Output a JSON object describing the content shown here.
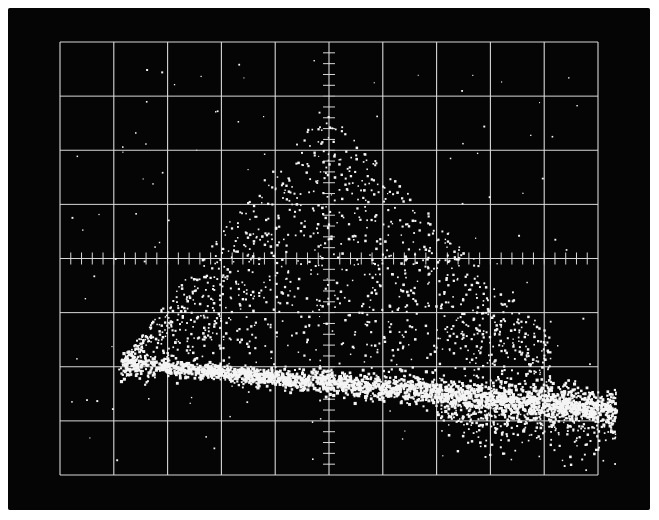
{
  "scene": {
    "subject": "oscilloscope-screen",
    "background_color": "#050505",
    "frame_color": "#ffffff",
    "graticule_color": "#d8d8d8",
    "trace_color": "#f4f4f4",
    "grid": {
      "major_columns": 10,
      "major_rows": 8,
      "minor_ticks_per_division": 5,
      "center_axes": true
    }
  }
}
